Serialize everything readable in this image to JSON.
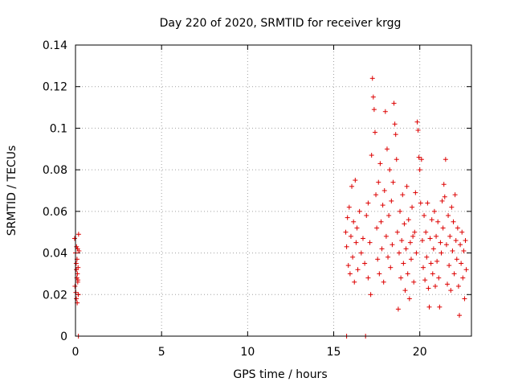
{
  "chart_data": {
    "type": "scatter",
    "title": "Day 220 of 2020, SRMTID for receiver krgg",
    "xlabel": "GPS time / hours",
    "ylabel": "SRMTID / TECUs",
    "xlim": [
      0,
      23
    ],
    "ylim": [
      0,
      0.14
    ],
    "x_ticks": [
      0,
      5,
      10,
      15,
      20
    ],
    "x_tick_labels": [
      "0",
      "5",
      "10",
      "15",
      "20"
    ],
    "y_ticks": [
      0,
      0.02,
      0.04,
      0.06,
      0.08,
      0.1,
      0.12,
      0.14
    ],
    "y_tick_labels": [
      "0",
      "0.02",
      "0.04",
      "0.06",
      "0.08",
      "0.1",
      "0.12",
      "0.14"
    ],
    "grid": true,
    "marker": "+",
    "color": "#dd0000",
    "series": [
      {
        "name": "SRMTID",
        "points": [
          [
            -0.05,
            0.047
          ],
          [
            -0.03,
            0.024
          ],
          [
            0.0,
            0.04
          ],
          [
            0.02,
            0.021
          ],
          [
            0.04,
            0.035
          ],
          [
            0.05,
            0.018
          ],
          [
            0.06,
            0.043
          ],
          [
            0.08,
            0.028
          ],
          [
            0.09,
            0.037
          ],
          [
            0.1,
            0.016
          ],
          [
            0.12,
            0.042
          ],
          [
            0.13,
            0.026
          ],
          [
            0.15,
            0.033
          ],
          [
            0.16,
            0.02
          ],
          [
            0.18,
            0.049
          ],
          [
            0.2,
            0.041
          ],
          [
            0.05,
            0.032
          ],
          [
            0.11,
            0.03
          ],
          [
            0.14,
            0.027
          ],
          [
            0.17,
            0.0
          ],
          [
            15.75,
            0.0
          ],
          [
            16.85,
            0.0
          ],
          [
            15.7,
            0.05
          ],
          [
            15.75,
            0.043
          ],
          [
            15.8,
            0.057
          ],
          [
            15.85,
            0.034
          ],
          [
            15.9,
            0.062
          ],
          [
            15.95,
            0.03
          ],
          [
            16.0,
            0.048
          ],
          [
            16.05,
            0.072
          ],
          [
            16.1,
            0.038
          ],
          [
            16.15,
            0.055
          ],
          [
            16.2,
            0.026
          ],
          [
            16.25,
            0.075
          ],
          [
            16.3,
            0.045
          ],
          [
            16.35,
            0.052
          ],
          [
            16.4,
            0.032
          ],
          [
            16.5,
            0.06
          ],
          [
            16.6,
            0.04
          ],
          [
            16.7,
            0.047
          ],
          [
            16.8,
            0.035
          ],
          [
            16.9,
            0.058
          ],
          [
            17.0,
            0.028
          ],
          [
            17.0,
            0.064
          ],
          [
            17.1,
            0.045
          ],
          [
            17.15,
            0.02
          ],
          [
            17.2,
            0.087
          ],
          [
            17.25,
            0.124
          ],
          [
            17.3,
            0.115
          ],
          [
            17.35,
            0.109
          ],
          [
            17.4,
            0.098
          ],
          [
            17.45,
            0.068
          ],
          [
            17.5,
            0.052
          ],
          [
            17.55,
            0.037
          ],
          [
            17.6,
            0.074
          ],
          [
            17.65,
            0.03
          ],
          [
            17.7,
            0.083
          ],
          [
            17.75,
            0.055
          ],
          [
            17.8,
            0.042
          ],
          [
            17.85,
            0.063
          ],
          [
            17.9,
            0.026
          ],
          [
            17.95,
            0.07
          ],
          [
            18.0,
            0.108
          ],
          [
            18.05,
            0.048
          ],
          [
            18.1,
            0.09
          ],
          [
            18.15,
            0.038
          ],
          [
            18.2,
            0.058
          ],
          [
            18.25,
            0.08
          ],
          [
            18.3,
            0.033
          ],
          [
            18.35,
            0.065
          ],
          [
            18.4,
            0.044
          ],
          [
            18.45,
            0.074
          ],
          [
            18.5,
            0.112
          ],
          [
            18.55,
            0.102
          ],
          [
            18.6,
            0.097
          ],
          [
            18.65,
            0.085
          ],
          [
            18.7,
            0.05
          ],
          [
            18.75,
            0.013
          ],
          [
            18.8,
            0.04
          ],
          [
            18.85,
            0.06
          ],
          [
            18.9,
            0.028
          ],
          [
            18.95,
            0.046
          ],
          [
            19.0,
            0.068
          ],
          [
            19.05,
            0.035
          ],
          [
            19.1,
            0.054
          ],
          [
            19.15,
            0.022
          ],
          [
            19.2,
            0.042
          ],
          [
            19.25,
            0.072
          ],
          [
            19.3,
            0.03
          ],
          [
            19.35,
            0.056
          ],
          [
            19.4,
            0.018
          ],
          [
            19.45,
            0.045
          ],
          [
            19.5,
            0.037
          ],
          [
            19.55,
            0.062
          ],
          [
            19.6,
            0.048
          ],
          [
            19.65,
            0.026
          ],
          [
            19.7,
            0.05
          ],
          [
            19.75,
            0.069
          ],
          [
            19.8,
            0.04
          ],
          [
            19.85,
            0.103
          ],
          [
            19.9,
            0.099
          ],
          [
            19.95,
            0.086
          ],
          [
            20.0,
            0.08
          ],
          [
            20.05,
            0.064
          ],
          [
            20.1,
            0.085
          ],
          [
            20.15,
            0.046
          ],
          [
            20.2,
            0.033
          ],
          [
            20.25,
            0.058
          ],
          [
            20.3,
            0.027
          ],
          [
            20.35,
            0.05
          ],
          [
            20.4,
            0.038
          ],
          [
            20.45,
            0.064
          ],
          [
            20.5,
            0.023
          ],
          [
            20.55,
            0.014
          ],
          [
            20.6,
            0.047
          ],
          [
            20.65,
            0.035
          ],
          [
            20.7,
            0.056
          ],
          [
            20.75,
            0.03
          ],
          [
            20.8,
            0.042
          ],
          [
            20.85,
            0.06
          ],
          [
            20.9,
            0.024
          ],
          [
            20.95,
            0.048
          ],
          [
            21.0,
            0.036
          ],
          [
            21.05,
            0.055
          ],
          [
            21.1,
            0.028
          ],
          [
            21.15,
            0.014
          ],
          [
            21.2,
            0.045
          ],
          [
            21.25,
            0.04
          ],
          [
            21.3,
            0.065
          ],
          [
            21.35,
            0.052
          ],
          [
            21.4,
            0.073
          ],
          [
            21.45,
            0.067
          ],
          [
            21.5,
            0.085
          ],
          [
            21.55,
            0.044
          ],
          [
            21.6,
            0.025
          ],
          [
            21.65,
            0.058
          ],
          [
            21.7,
            0.034
          ],
          [
            21.75,
            0.048
          ],
          [
            21.8,
            0.022
          ],
          [
            21.85,
            0.062
          ],
          [
            21.9,
            0.041
          ],
          [
            21.95,
            0.055
          ],
          [
            22.0,
            0.03
          ],
          [
            22.05,
            0.068
          ],
          [
            22.1,
            0.046
          ],
          [
            22.15,
            0.037
          ],
          [
            22.2,
            0.052
          ],
          [
            22.25,
            0.024
          ],
          [
            22.3,
            0.01
          ],
          [
            22.35,
            0.044
          ],
          [
            22.4,
            0.035
          ],
          [
            22.45,
            0.05
          ],
          [
            22.5,
            0.028
          ],
          [
            22.55,
            0.041
          ],
          [
            22.6,
            0.018
          ],
          [
            22.65,
            0.046
          ],
          [
            22.7,
            0.032
          ]
        ]
      }
    ]
  }
}
